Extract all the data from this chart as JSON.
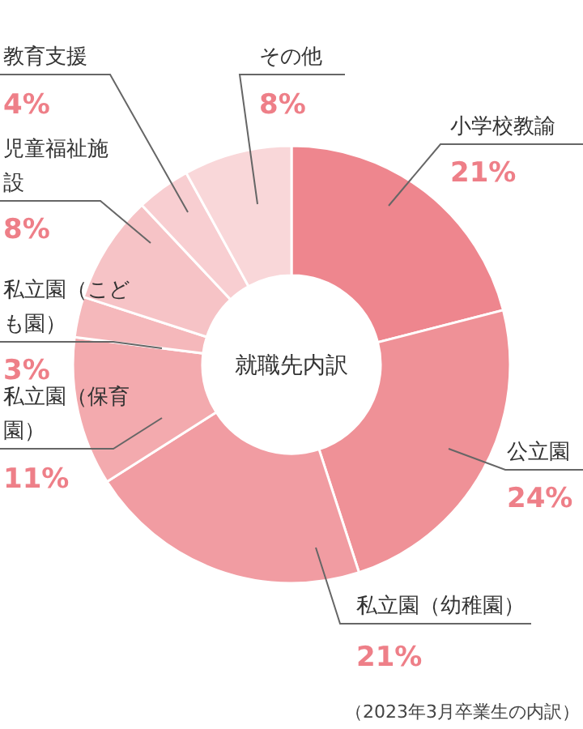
{
  "chart_data": {
    "type": "donut",
    "title": "就職先内訳",
    "categories": [
      "小学校教諭",
      "公立園",
      "私立園（幼稚園）",
      "私立園（保育園）",
      "私立園（こども園）",
      "児童福祉施設",
      "教育支援",
      "その他"
    ],
    "values": [
      21,
      24,
      21,
      11,
      3,
      8,
      4,
      8
    ],
    "colors": [
      "#ee868e",
      "#ef9197",
      "#f19ca2",
      "#f3aaae",
      "#f5b8bb",
      "#f6c3c6",
      "#f8ced1",
      "#f9d7d9"
    ],
    "value_labels": [
      "21%",
      "24%",
      "21%",
      "11%",
      "3%",
      "8%",
      "4%",
      "8%"
    ],
    "annotations": [
      "（2023年3月卒業生の内訳）"
    ]
  }
}
